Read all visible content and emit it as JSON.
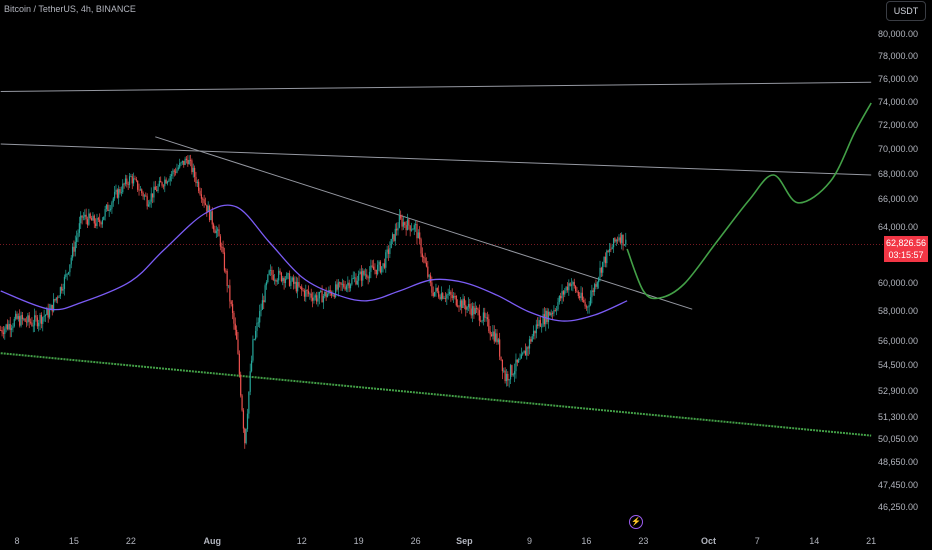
{
  "header": {
    "symbol": "Bitcoin / TetherUS, 4h, BINANCE",
    "currency_button": "USDT"
  },
  "last_price": {
    "value": "62,826.56",
    "countdown": "03:15:57",
    "color": "#f23645"
  },
  "colors": {
    "up": "#26a69a",
    "down": "#ef5350",
    "ma": "#7b5cf5",
    "projection": "#43a047",
    "support": "#43a047",
    "lines": "#9598a1"
  },
  "event_icon": "lightning-icon",
  "chart_data": {
    "type": "candlestick",
    "title": "Bitcoin / TetherUS, 4h, BINANCE",
    "y_ticks": [
      "80,000.00",
      "78,000.00",
      "76,000.00",
      "74,000.00",
      "72,000.00",
      "70,000.00",
      "68,000.00",
      "66,000.00",
      "64,000.00",
      "60,000.00",
      "58,000.00",
      "56,000.00",
      "54,500.00",
      "52,900.00",
      "51,300.00",
      "50,050.00",
      "48,650.00",
      "47,450.00",
      "46,250.00"
    ],
    "x_ticks": [
      "8",
      "15",
      "22",
      "Aug",
      "12",
      "19",
      "26",
      "Sep",
      "9",
      "16",
      "23",
      "Oct",
      "7",
      "14",
      "21"
    ],
    "price_path": [
      {
        "date": "Jul 6",
        "price": 56800
      },
      {
        "date": "Jul 8",
        "price": 57500
      },
      {
        "date": "Jul 10",
        "price": 57300
      },
      {
        "date": "Jul 12",
        "price": 58000
      },
      {
        "date": "Jul 14",
        "price": 60500
      },
      {
        "date": "Jul 16",
        "price": 64800
      },
      {
        "date": "Jul 18",
        "price": 64300
      },
      {
        "date": "Jul 20",
        "price": 66300
      },
      {
        "date": "Jul 22",
        "price": 67800
      },
      {
        "date": "Jul 24",
        "price": 66000
      },
      {
        "date": "Jul 26",
        "price": 67500
      },
      {
        "date": "Jul 29",
        "price": 69300
      },
      {
        "date": "Jul 31",
        "price": 66000
      },
      {
        "date": "Aug 2",
        "price": 63000
      },
      {
        "date": "Aug 4",
        "price": 56000
      },
      {
        "date": "Aug 5",
        "price": 50000
      },
      {
        "date": "Aug 6",
        "price": 55800
      },
      {
        "date": "Aug 8",
        "price": 60700
      },
      {
        "date": "Aug 10",
        "price": 60500
      },
      {
        "date": "Aug 12",
        "price": 59500
      },
      {
        "date": "Aug 14",
        "price": 59000
      },
      {
        "date": "Aug 16",
        "price": 59500
      },
      {
        "date": "Aug 18",
        "price": 60200
      },
      {
        "date": "Aug 20",
        "price": 60800
      },
      {
        "date": "Aug 22",
        "price": 61300
      },
      {
        "date": "Aug 24",
        "price": 64500
      },
      {
        "date": "Aug 26",
        "price": 64000
      },
      {
        "date": "Aug 28",
        "price": 59500
      },
      {
        "date": "Aug 30",
        "price": 59200
      },
      {
        "date": "Sep 1",
        "price": 58500
      },
      {
        "date": "Sep 3",
        "price": 57800
      },
      {
        "date": "Sep 5",
        "price": 56200
      },
      {
        "date": "Sep 6",
        "price": 53800
      },
      {
        "date": "Sep 8",
        "price": 54800
      },
      {
        "date": "Sep 10",
        "price": 57200
      },
      {
        "date": "Sep 12",
        "price": 58200
      },
      {
        "date": "Sep 14",
        "price": 60200
      },
      {
        "date": "Sep 16",
        "price": 58300
      },
      {
        "date": "Sep 18",
        "price": 61500
      },
      {
        "date": "Sep 20",
        "price": 63500
      },
      {
        "date": "Sep 21",
        "price": 62800
      }
    ],
    "moving_average": [
      {
        "date": "Jul 6",
        "price": 59500
      },
      {
        "date": "Jul 12",
        "price": 58200
      },
      {
        "date": "Jul 16",
        "price": 58700
      },
      {
        "date": "Jul 22",
        "price": 60200
      },
      {
        "date": "Jul 26",
        "price": 62400
      },
      {
        "date": "Jul 31",
        "price": 65000
      },
      {
        "date": "Aug 4",
        "price": 65500
      },
      {
        "date": "Aug 8",
        "price": 63000
      },
      {
        "date": "Aug 12",
        "price": 60500
      },
      {
        "date": "Aug 16",
        "price": 59300
      },
      {
        "date": "Aug 20",
        "price": 58800
      },
      {
        "date": "Aug 24",
        "price": 59500
      },
      {
        "date": "Aug 28",
        "price": 60300
      },
      {
        "date": "Sep 1",
        "price": 60100
      },
      {
        "date": "Sep 5",
        "price": 59200
      },
      {
        "date": "Sep 9",
        "price": 58000
      },
      {
        "date": "Sep 13",
        "price": 57400
      },
      {
        "date": "Sep 17",
        "price": 57800
      },
      {
        "date": "Sep 21",
        "price": 58800
      }
    ],
    "projection": [
      {
        "date": "Sep 21",
        "price": 62500
      },
      {
        "date": "Sep 23",
        "price": 59500
      },
      {
        "date": "Sep 25",
        "price": 59000
      },
      {
        "date": "Sep 28",
        "price": 60000
      },
      {
        "date": "Oct 2",
        "price": 63000
      },
      {
        "date": "Oct 6",
        "price": 66000
      },
      {
        "date": "Oct 9",
        "price": 68000
      },
      {
        "date": "Oct 12",
        "price": 65800
      },
      {
        "date": "Oct 16",
        "price": 67500
      },
      {
        "date": "Oct 19",
        "price": 71500
      },
      {
        "date": "Oct 21",
        "price": 74000
      }
    ],
    "trendlines": [
      {
        "from": {
          "date": "Jul 6",
          "price": 75000
        },
        "to": {
          "date": "Oct 21",
          "price": 75800
        },
        "style": "solid"
      },
      {
        "from": {
          "date": "Jul 6",
          "price": 70500
        },
        "to": {
          "date": "Oct 21",
          "price": 68000
        },
        "style": "solid"
      },
      {
        "from": {
          "date": "Jul 25",
          "price": 71100
        },
        "to": {
          "date": "Sep 29",
          "price": 58200
        },
        "style": "solid"
      },
      {
        "from": {
          "date": "Jul 6",
          "price": 55300
        },
        "to": {
          "date": "Oct 21",
          "price": 50300
        },
        "style": "dotted"
      }
    ],
    "last_price_line": 62826.56,
    "grid": false
  }
}
